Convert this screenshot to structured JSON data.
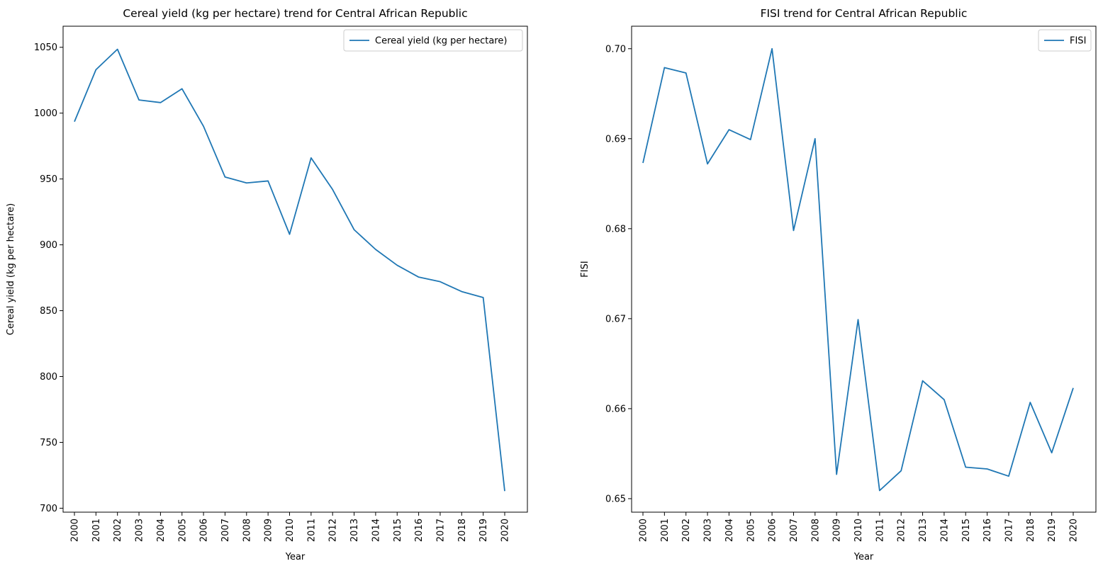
{
  "chart_data": [
    {
      "type": "line",
      "title": "Cereal yield (kg per hectare) trend for Central African Republic",
      "xlabel": "Year",
      "ylabel": "Cereal yield (kg per hectare)",
      "ylim": [
        697,
        1066
      ],
      "yticks": [
        700,
        750,
        800,
        850,
        900,
        950,
        1000,
        1050
      ],
      "grid": false,
      "legend_position": "upper right",
      "categories": [
        "2000",
        "2001",
        "2002",
        "2003",
        "2004",
        "2005",
        "2006",
        "2007",
        "2008",
        "2009",
        "2010",
        "2011",
        "2012",
        "2013",
        "2014",
        "2015",
        "2016",
        "2017",
        "2018",
        "2019",
        "2020"
      ],
      "series": [
        {
          "name": "Cereal yield (kg per hectare)",
          "color": "#1f77b4",
          "values": [
            993.5,
            1033,
            1048.5,
            1010,
            1008,
            1018.5,
            990,
            951.5,
            947,
            948.5,
            908,
            966,
            942,
            911.5,
            896.5,
            884.5,
            875.5,
            872,
            864.5,
            860,
            713
          ]
        }
      ]
    },
    {
      "type": "line",
      "title": "FISI trend for Central African Republic",
      "xlabel": "Year",
      "ylabel": "FISI",
      "ylim": [
        0.6485,
        0.7025
      ],
      "yticks": [
        0.65,
        0.66,
        0.67,
        0.68,
        0.69,
        0.7
      ],
      "grid": false,
      "legend_position": "upper right",
      "categories": [
        "2000",
        "2001",
        "2002",
        "2003",
        "2004",
        "2005",
        "2006",
        "2007",
        "2008",
        "2009",
        "2010",
        "2011",
        "2012",
        "2013",
        "2014",
        "2015",
        "2016",
        "2017",
        "2018",
        "2019",
        "2020"
      ],
      "series": [
        {
          "name": "FISI",
          "color": "#1f77b4",
          "values": [
            0.6873,
            0.6979,
            0.6973,
            0.6872,
            0.691,
            0.6899,
            0.7,
            0.6798,
            0.69,
            0.6527,
            0.6699,
            0.6509,
            0.6531,
            0.6631,
            0.661,
            0.6535,
            0.6533,
            0.6525,
            0.6607,
            0.6551,
            0.6623
          ]
        }
      ]
    }
  ]
}
